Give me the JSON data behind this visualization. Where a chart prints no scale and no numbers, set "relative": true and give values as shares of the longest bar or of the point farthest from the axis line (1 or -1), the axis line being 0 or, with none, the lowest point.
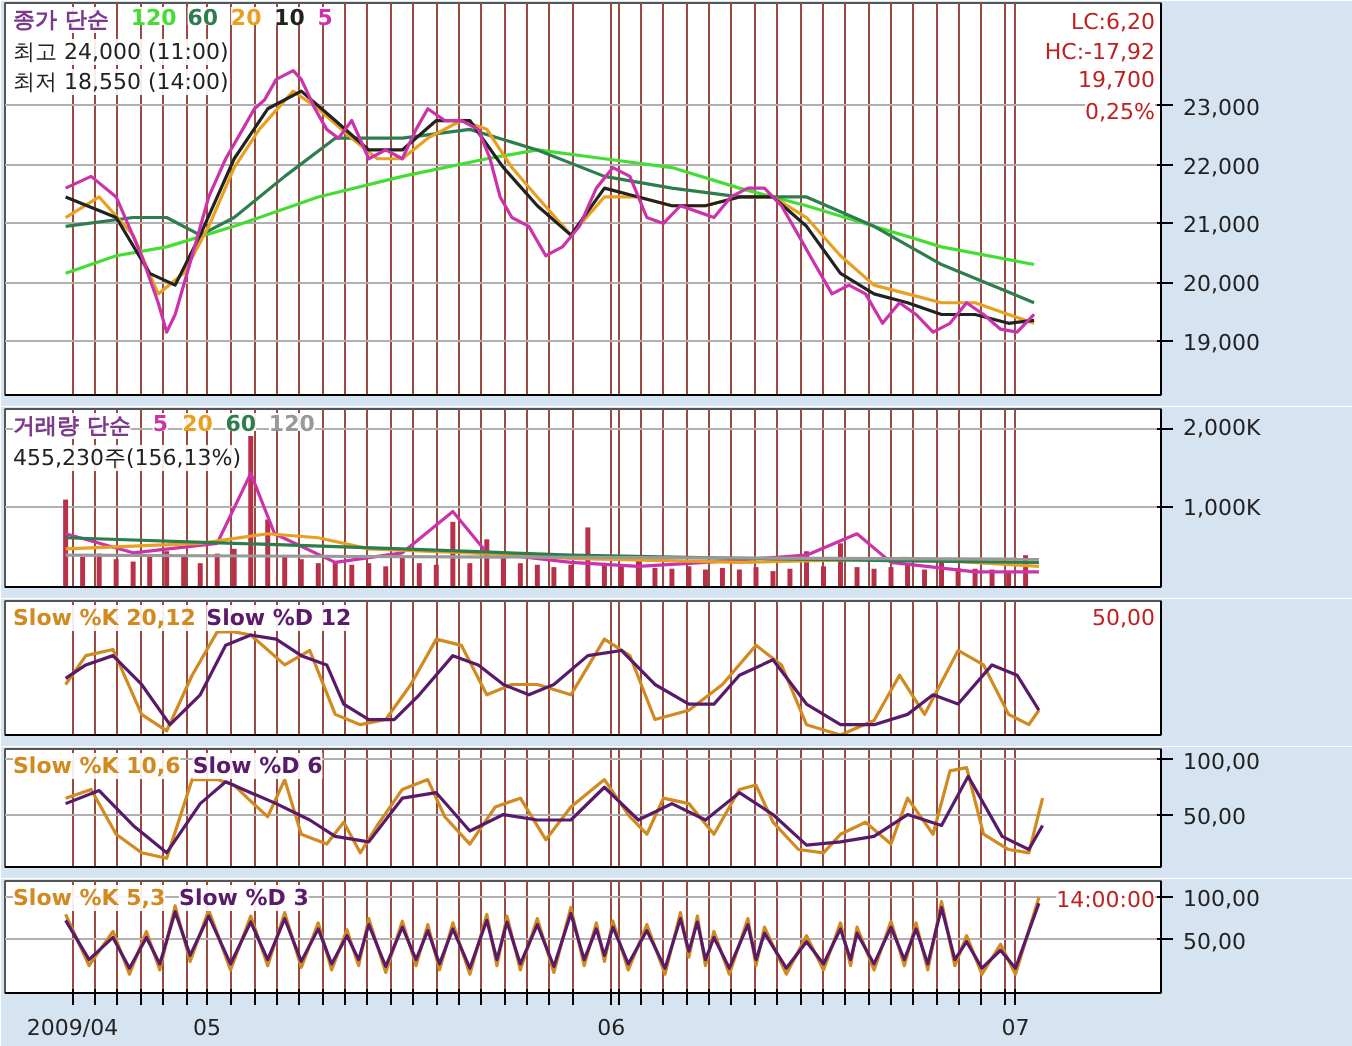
{
  "chart_data": [
    {
      "type": "line",
      "legend_title": "종가 단순",
      "legend": "top left",
      "grid": true,
      "tick_labels": "y",
      "xlim": [
        4.5,
        7.36
      ],
      "ylim": [
        18080,
        24750
      ],
      "xticks": [
        {
          "value": 4.667,
          "label": null
        },
        {
          "value": 4.723,
          "label": null
        },
        {
          "value": 4.779,
          "label": null
        },
        {
          "value": 4.836,
          "label": null
        },
        {
          "value": 4.892,
          "label": null
        },
        {
          "value": 4.948,
          "label": null
        },
        {
          "value": 5,
          "label": null
        },
        {
          "value": 5.061,
          "label": null
        },
        {
          "value": 5.117,
          "label": null
        },
        {
          "value": 5.173,
          "label": null
        },
        {
          "value": 5.229,
          "label": null
        },
        {
          "value": 5.286,
          "label": null
        },
        {
          "value": 5.342,
          "label": null
        },
        {
          "value": 5.398,
          "label": null
        },
        {
          "value": 5.454,
          "label": null
        },
        {
          "value": 5.511,
          "label": null
        },
        {
          "value": 5.567,
          "label": null
        },
        {
          "value": 5.623,
          "label": null
        },
        {
          "value": 5.679,
          "label": null
        },
        {
          "value": 5.736,
          "label": null
        },
        {
          "value": 5.792,
          "label": null
        },
        {
          "value": 5.848,
          "label": null
        },
        {
          "value": 5.904,
          "label": null
        },
        {
          "value": 6,
          "label": null
        },
        {
          "value": 6.017,
          "label": null
        },
        {
          "value": 6.073,
          "label": null
        },
        {
          "value": 6.129,
          "label": null
        },
        {
          "value": 6.186,
          "label": null
        },
        {
          "value": 6.242,
          "label": null
        },
        {
          "value": 6.298,
          "label": null
        },
        {
          "value": 6.354,
          "label": null
        },
        {
          "value": 6.411,
          "label": null
        },
        {
          "value": 6.467,
          "label": null
        },
        {
          "value": 6.523,
          "label": null
        },
        {
          "value": 6.579,
          "label": null
        },
        {
          "value": 6.636,
          "label": null
        },
        {
          "value": 6.692,
          "label": null
        },
        {
          "value": 6.748,
          "label": null
        },
        {
          "value": 6.804,
          "label": null
        },
        {
          "value": 6.861,
          "label": null
        },
        {
          "value": 6.917,
          "label": null
        },
        {
          "value": 6.973,
          "label": null
        },
        {
          "value": 7,
          "label": null
        }
      ],
      "yticks": [
        {
          "value": 19000,
          "label": "19,000"
        },
        {
          "value": 20000,
          "label": "20,000"
        },
        {
          "value": 21000,
          "label": "21,000"
        },
        {
          "value": 22000,
          "label": "22,000"
        },
        {
          "value": 23000,
          "label": "23,000"
        }
      ],
      "series": [
        {
          "name": "120",
          "color": "#44dd33",
          "x": [
            4.65,
            4.775,
            4.9,
            5.067,
            5.275,
            5.483,
            5.692,
            5.817,
            5.983,
            6.15,
            6.317,
            6.483,
            6.65,
            6.817,
            7.046
          ],
          "values": [
            20150,
            20450,
            20600,
            20950,
            21450,
            21800,
            22100,
            22250,
            22100,
            21950,
            21600,
            21300,
            20950,
            20600,
            20300
          ]
        },
        {
          "name": "60",
          "color": "#2e7d4f",
          "x": [
            4.65,
            4.817,
            4.9,
            4.983,
            5.067,
            5.192,
            5.317,
            5.483,
            5.65,
            5.817,
            5.983,
            6.15,
            6.317,
            6.483,
            6.65,
            6.817,
            7.046
          ],
          "values": [
            20950,
            21100,
            21100,
            20800,
            21100,
            21800,
            22450,
            22450,
            22600,
            22250,
            21800,
            21600,
            21450,
            21450,
            20950,
            20300,
            19650
          ]
        },
        {
          "name": "20",
          "color": "#e8a020",
          "x": [
            4.65,
            4.733,
            4.817,
            4.879,
            4.942,
            5.004,
            5.067,
            5.129,
            5.213,
            5.275,
            5.358,
            5.421,
            5.483,
            5.546,
            5.629,
            5.692,
            5.754,
            5.817,
            5.9,
            5.983,
            6.067,
            6.15,
            6.233,
            6.317,
            6.4,
            6.483,
            6.567,
            6.65,
            6.733,
            6.817,
            6.9,
            6.983,
            7.046
          ],
          "values": [
            21100,
            21450,
            20800,
            19800,
            20150,
            20950,
            21950,
            22600,
            23250,
            22950,
            22450,
            22100,
            22100,
            22450,
            22750,
            22600,
            21950,
            21450,
            20800,
            21450,
            21450,
            21300,
            21300,
            21450,
            21450,
            21100,
            20450,
            19950,
            19800,
            19650,
            19650,
            19450,
            19300
          ]
        },
        {
          "name": "10",
          "color": "#222222",
          "x": [
            4.65,
            4.775,
            4.858,
            4.921,
            4.983,
            5.067,
            5.15,
            5.233,
            5.317,
            5.4,
            5.483,
            5.567,
            5.65,
            5.733,
            5.817,
            5.9,
            5.983,
            6.067,
            6.15,
            6.233,
            6.317,
            6.4,
            6.483,
            6.567,
            6.65,
            6.733,
            6.817,
            6.9,
            6.983,
            7.046
          ],
          "values": [
            21450,
            21100,
            20150,
            19950,
            20800,
            22100,
            22950,
            23250,
            22750,
            22250,
            22250,
            22750,
            22750,
            21950,
            21300,
            20800,
            21600,
            21450,
            21300,
            21300,
            21450,
            21450,
            20950,
            20150,
            19800,
            19650,
            19450,
            19450,
            19300,
            19350
          ]
        },
        {
          "name": "5",
          "color": "#cc33aa",
          "x": [
            4.65,
            4.713,
            4.775,
            4.838,
            4.879,
            4.9,
            4.921,
            4.963,
            5.004,
            5.046,
            5.088,
            5.117,
            5.142,
            5.171,
            5.213,
            5.233,
            5.267,
            5.296,
            5.325,
            5.358,
            5.4,
            5.442,
            5.483,
            5.517,
            5.546,
            5.588,
            5.629,
            5.671,
            5.7,
            5.725,
            5.754,
            5.796,
            5.838,
            5.879,
            5.921,
            5.963,
            6.004,
            6.046,
            6.088,
            6.129,
            6.171,
            6.213,
            6.254,
            6.296,
            6.338,
            6.379,
            6.421,
            6.463,
            6.504,
            6.546,
            6.588,
            6.629,
            6.671,
            6.713,
            6.754,
            6.796,
            6.838,
            6.879,
            6.921,
            6.963,
            7.004,
            7.046
          ],
          "values": [
            21600,
            21800,
            21450,
            20450,
            19650,
            19150,
            19450,
            20450,
            21450,
            22100,
            22600,
            22950,
            23100,
            23450,
            23600,
            23450,
            22950,
            22600,
            22450,
            22750,
            22100,
            22250,
            22100,
            22600,
            22950,
            22750,
            22750,
            22600,
            22100,
            21450,
            21100,
            20950,
            20450,
            20600,
            20950,
            21600,
            21950,
            21800,
            21100,
            21000,
            21300,
            21200,
            21100,
            21450,
            21600,
            21600,
            21300,
            20800,
            20300,
            19800,
            19950,
            19800,
            19300,
            19650,
            19450,
            19150,
            19300,
            19650,
            19450,
            19200,
            19150,
            19450
          ]
        }
      ],
      "annotations": [
        "최고 24,000 (11:00)",
        "최저 18,550 (14:00)",
        "LC:6,20",
        "HC:-17,92",
        "19,700",
        "0,25%"
      ]
    },
    {
      "type": "bar",
      "legend_title": "거래량 단순",
      "legend": "top left",
      "grid": true,
      "tick_labels": "y",
      "xlim": [
        4.5,
        7.36
      ],
      "ylim": [
        0,
        2240
      ],
      "xticks": [
        {
          "value": 4.667,
          "label": null
        },
        {
          "value": 4.723,
          "label": null
        },
        {
          "value": 4.779,
          "label": null
        },
        {
          "value": 4.836,
          "label": null
        },
        {
          "value": 4.892,
          "label": null
        },
        {
          "value": 4.948,
          "label": null
        },
        {
          "value": 5,
          "label": null
        },
        {
          "value": 5.061,
          "label": null
        },
        {
          "value": 5.117,
          "label": null
        },
        {
          "value": 5.173,
          "label": null
        },
        {
          "value": 5.229,
          "label": null
        },
        {
          "value": 5.286,
          "label": null
        },
        {
          "value": 5.342,
          "label": null
        },
        {
          "value": 5.398,
          "label": null
        },
        {
          "value": 5.454,
          "label": null
        },
        {
          "value": 5.511,
          "label": null
        },
        {
          "value": 5.567,
          "label": null
        },
        {
          "value": 5.623,
          "label": null
        },
        {
          "value": 5.679,
          "label": null
        },
        {
          "value": 5.736,
          "label": null
        },
        {
          "value": 5.792,
          "label": null
        },
        {
          "value": 5.848,
          "label": null
        },
        {
          "value": 5.904,
          "label": null
        },
        {
          "value": 6,
          "label": null
        },
        {
          "value": 6.017,
          "label": null
        },
        {
          "value": 6.073,
          "label": null
        },
        {
          "value": 6.129,
          "label": null
        },
        {
          "value": 6.186,
          "label": null
        },
        {
          "value": 6.242,
          "label": null
        },
        {
          "value": 6.298,
          "label": null
        },
        {
          "value": 6.354,
          "label": null
        },
        {
          "value": 6.411,
          "label": null
        },
        {
          "value": 6.467,
          "label": null
        },
        {
          "value": 6.523,
          "label": null
        },
        {
          "value": 6.579,
          "label": null
        },
        {
          "value": 6.636,
          "label": null
        },
        {
          "value": 6.692,
          "label": null
        },
        {
          "value": 6.748,
          "label": null
        },
        {
          "value": 6.804,
          "label": null
        },
        {
          "value": 6.861,
          "label": null
        },
        {
          "value": 6.917,
          "label": null
        },
        {
          "value": 6.973,
          "label": null
        },
        {
          "value": 7,
          "label": null
        }
      ],
      "yticks": [
        {
          "value": 1000,
          "label": "1,000K"
        },
        {
          "value": 2000,
          "label": "2,000K"
        }
      ],
      "series": [
        {
          "type": "bar",
          "color": "#b8304a",
          "x": [
            4.65,
            4.692,
            4.733,
            4.775,
            4.817,
            4.858,
            4.9,
            4.942,
            4.983,
            5.025,
            5.067,
            5.108,
            5.15,
            5.192,
            5.233,
            5.275,
            5.317,
            5.358,
            5.4,
            5.442,
            5.483,
            5.525,
            5.567,
            5.608,
            5.65,
            5.692,
            5.733,
            5.775,
            5.817,
            5.858,
            5.9,
            5.942,
            5.983,
            6.025,
            6.067,
            6.108,
            6.15,
            6.192,
            6.233,
            6.275,
            6.317,
            6.358,
            6.4,
            6.442,
            6.483,
            6.525,
            6.567,
            6.608,
            6.65,
            6.692,
            6.733,
            6.775,
            6.817,
            6.858,
            6.9,
            6.942,
            6.983,
            7.025
          ],
          "values": [
            1100,
            380,
            420,
            350,
            320,
            400,
            450,
            380,
            300,
            420,
            480,
            1900,
            850,
            400,
            350,
            300,
            320,
            280,
            300,
            260,
            380,
            300,
            280,
            820,
            300,
            600,
            420,
            300,
            280,
            250,
            280,
            750,
            300,
            260,
            350,
            240,
            230,
            260,
            220,
            240,
            220,
            250,
            200,
            230,
            450,
            260,
            550,
            250,
            230,
            250,
            280,
            220,
            350,
            240,
            230,
            220,
            200,
            400
          ]
        },
        {
          "type": "line",
          "name": "5",
          "color": "#cc33aa",
          "x": [
            4.65,
            4.817,
            5.025,
            5.108,
            5.167,
            5.317,
            5.483,
            5.608,
            5.692,
            5.9,
            6.067,
            6.233,
            6.483,
            6.608,
            6.692,
            6.9,
            7.058
          ],
          "values": [
            670,
            430,
            550,
            1430,
            670,
            310,
            430,
            950,
            430,
            310,
            260,
            310,
            400,
            670,
            310,
            190,
            190
          ]
        },
        {
          "type": "line",
          "name": "20",
          "color": "#e8a020",
          "x": [
            4.65,
            4.983,
            5.15,
            5.275,
            5.4,
            5.65,
            5.9,
            6.317,
            6.733,
            7.058
          ],
          "values": [
            480,
            550,
            670,
            620,
            480,
            430,
            360,
            310,
            360,
            260
          ]
        },
        {
          "type": "line",
          "name": "60",
          "color": "#2e7d4f",
          "x": [
            4.65,
            5.067,
            5.483,
            5.9,
            6.317,
            6.733,
            7.058
          ],
          "values": [
            620,
            550,
            480,
            400,
            360,
            330,
            310
          ]
        },
        {
          "type": "line",
          "name": "120",
          "color": "#999999",
          "x": [
            4.65,
            7.058
          ],
          "values": [
            400,
            350
          ]
        }
      ],
      "annotations": [
        "455,230주(156,13%)"
      ]
    },
    {
      "type": "line",
      "relative": true,
      "legend": "top left",
      "grid": true,
      "tick_labels": false,
      "xlim": [
        4.5,
        7.36
      ],
      "xticks": [
        {
          "value": 4.667,
          "label": null
        },
        {
          "value": 4.723,
          "label": null
        },
        {
          "value": 4.779,
          "label": null
        },
        {
          "value": 4.836,
          "label": null
        },
        {
          "value": 4.892,
          "label": null
        },
        {
          "value": 4.948,
          "label": null
        },
        {
          "value": 5,
          "label": null
        },
        {
          "value": 5.061,
          "label": null
        },
        {
          "value": 5.117,
          "label": null
        },
        {
          "value": 5.173,
          "label": null
        },
        {
          "value": 5.229,
          "label": null
        },
        {
          "value": 5.286,
          "label": null
        },
        {
          "value": 5.342,
          "label": null
        },
        {
          "value": 5.398,
          "label": null
        },
        {
          "value": 5.454,
          "label": null
        },
        {
          "value": 5.511,
          "label": null
        },
        {
          "value": 5.567,
          "label": null
        },
        {
          "value": 5.623,
          "label": null
        },
        {
          "value": 5.679,
          "label": null
        },
        {
          "value": 5.736,
          "label": null
        },
        {
          "value": 5.792,
          "label": null
        },
        {
          "value": 5.848,
          "label": null
        },
        {
          "value": 5.904,
          "label": null
        },
        {
          "value": 6,
          "label": null
        },
        {
          "value": 6.017,
          "label": null
        },
        {
          "value": 6.073,
          "label": null
        },
        {
          "value": 6.129,
          "label": null
        },
        {
          "value": 6.186,
          "label": null
        },
        {
          "value": 6.242,
          "label": null
        },
        {
          "value": 6.298,
          "label": null
        },
        {
          "value": 6.354,
          "label": null
        },
        {
          "value": 6.411,
          "label": null
        },
        {
          "value": 6.467,
          "label": null
        },
        {
          "value": 6.523,
          "label": null
        },
        {
          "value": 6.579,
          "label": null
        },
        {
          "value": 6.636,
          "label": null
        },
        {
          "value": 6.692,
          "label": null
        },
        {
          "value": 6.748,
          "label": null
        },
        {
          "value": 6.804,
          "label": null
        },
        {
          "value": 6.861,
          "label": null
        },
        {
          "value": 6.917,
          "label": null
        },
        {
          "value": 6.973,
          "label": null
        },
        {
          "value": 7,
          "label": null
        }
      ],
      "series": [
        {
          "name": "Slow %K 20,12",
          "color": "#d08a20",
          "x": [
            4.65,
            4.7,
            4.767,
            4.838,
            4.9,
            4.963,
            5.025,
            5.067,
            5.108,
            5.192,
            5.254,
            5.317,
            5.379,
            5.442,
            5.504,
            5.567,
            5.629,
            5.692,
            5.754,
            5.817,
            5.9,
            5.983,
            6.046,
            6.108,
            6.192,
            6.275,
            6.358,
            6.421,
            6.483,
            6.567,
            6.65,
            6.713,
            6.775,
            6.858,
            6.921,
            6.983,
            7.033,
            7.058
          ],
          "values": [
            0.49,
            0.77,
            0.83,
            0.2,
            0.04,
            0.58,
            1,
            1,
            0.97,
            0.68,
            0.82,
            0.2,
            0.1,
            0.15,
            0.49,
            0.93,
            0.87,
            0.39,
            0.49,
            0.49,
            0.39,
            0.93,
            0.77,
            0.15,
            0.24,
            0.49,
            0.87,
            0.68,
            0.1,
            0,
            0.14,
            0.58,
            0.2,
            0.82,
            0.68,
            0.2,
            0.1,
            0.24
          ]
        },
        {
          "name": "Slow %D 12",
          "color": "#5a1a6a",
          "x": [
            4.65,
            4.7,
            4.767,
            4.838,
            4.908,
            4.983,
            5.046,
            5.108,
            5.171,
            5.233,
            5.296,
            5.338,
            5.4,
            5.463,
            5.525,
            5.608,
            5.671,
            5.733,
            5.796,
            5.858,
            5.942,
            6.025,
            6.108,
            6.192,
            6.254,
            6.317,
            6.4,
            6.483,
            6.567,
            6.65,
            6.733,
            6.796,
            6.858,
            6.942,
            7.004,
            7.058
          ],
          "values": [
            0.55,
            0.68,
            0.77,
            0.49,
            0.1,
            0.39,
            0.87,
            0.97,
            0.93,
            0.77,
            0.68,
            0.3,
            0.15,
            0.15,
            0.39,
            0.77,
            0.68,
            0.49,
            0.39,
            0.49,
            0.77,
            0.82,
            0.49,
            0.3,
            0.3,
            0.58,
            0.73,
            0.3,
            0.1,
            0.1,
            0.2,
            0.39,
            0.3,
            0.68,
            0.58,
            0.24
          ]
        }
      ],
      "annotations": [
        "50,00"
      ]
    },
    {
      "type": "line",
      "legend": "top left",
      "grid": true,
      "tick_labels": "y",
      "xlim": [
        4.5,
        7.36
      ],
      "ylim": [
        2,
        110
      ],
      "xticks": [
        {
          "value": 4.667,
          "label": null
        },
        {
          "value": 4.723,
          "label": null
        },
        {
          "value": 4.779,
          "label": null
        },
        {
          "value": 4.836,
          "label": null
        },
        {
          "value": 4.892,
          "label": null
        },
        {
          "value": 4.948,
          "label": null
        },
        {
          "value": 5,
          "label": null
        },
        {
          "value": 5.061,
          "label": null
        },
        {
          "value": 5.117,
          "label": null
        },
        {
          "value": 5.173,
          "label": null
        },
        {
          "value": 5.229,
          "label": null
        },
        {
          "value": 5.286,
          "label": null
        },
        {
          "value": 5.342,
          "label": null
        },
        {
          "value": 5.398,
          "label": null
        },
        {
          "value": 5.454,
          "label": null
        },
        {
          "value": 5.511,
          "label": null
        },
        {
          "value": 5.567,
          "label": null
        },
        {
          "value": 5.623,
          "label": null
        },
        {
          "value": 5.679,
          "label": null
        },
        {
          "value": 5.736,
          "label": null
        },
        {
          "value": 5.792,
          "label": null
        },
        {
          "value": 5.848,
          "label": null
        },
        {
          "value": 5.904,
          "label": null
        },
        {
          "value": 6,
          "label": null
        },
        {
          "value": 6.017,
          "label": null
        },
        {
          "value": 6.073,
          "label": null
        },
        {
          "value": 6.129,
          "label": null
        },
        {
          "value": 6.186,
          "label": null
        },
        {
          "value": 6.242,
          "label": null
        },
        {
          "value": 6.298,
          "label": null
        },
        {
          "value": 6.354,
          "label": null
        },
        {
          "value": 6.411,
          "label": null
        },
        {
          "value": 6.467,
          "label": null
        },
        {
          "value": 6.523,
          "label": null
        },
        {
          "value": 6.579,
          "label": null
        },
        {
          "value": 6.636,
          "label": null
        },
        {
          "value": 6.692,
          "label": null
        },
        {
          "value": 6.748,
          "label": null
        },
        {
          "value": 6.804,
          "label": null
        },
        {
          "value": 6.861,
          "label": null
        },
        {
          "value": 6.917,
          "label": null
        },
        {
          "value": 6.973,
          "label": null
        },
        {
          "value": 7,
          "label": null
        }
      ],
      "yticks": [
        {
          "value": 50,
          "label": "50,00"
        },
        {
          "value": 100,
          "label": "100,00"
        }
      ],
      "series": [
        {
          "name": "Slow %K 10,6",
          "color": "#d08a20",
          "x": [
            4.65,
            4.713,
            4.775,
            4.838,
            4.9,
            4.963,
            5.025,
            5.067,
            5.1,
            5.15,
            5.192,
            5.233,
            5.296,
            5.338,
            5.379,
            5.421,
            5.483,
            5.546,
            5.588,
            5.65,
            5.713,
            5.775,
            5.838,
            5.9,
            5.983,
            6.046,
            6.088,
            6.129,
            6.192,
            6.254,
            6.317,
            6.358,
            6.4,
            6.463,
            6.525,
            6.567,
            6.629,
            6.692,
            6.733,
            6.796,
            6.838,
            6.879,
            6.921,
            6.983,
            7.033,
            7.067
          ],
          "values": [
            65,
            73,
            32,
            15,
            10,
            82,
            82,
            77,
            65,
            48,
            82,
            32,
            23,
            43,
            15,
            40,
            73,
            82,
            48,
            23,
            57,
            65,
            27,
            57,
            82,
            48,
            32,
            65,
            60,
            32,
            73,
            77,
            43,
            18,
            15,
            32,
            43,
            23,
            65,
            32,
            90,
            93,
            32,
            18,
            15,
            65
          ]
        },
        {
          "name": "Slow %D 6",
          "color": "#5a1a6a",
          "x": [
            4.65,
            4.733,
            4.817,
            4.9,
            4.983,
            5.046,
            5.108,
            5.171,
            5.254,
            5.317,
            5.4,
            5.483,
            5.567,
            5.65,
            5.733,
            5.817,
            5.9,
            5.983,
            6.067,
            6.15,
            6.233,
            6.317,
            6.4,
            6.483,
            6.567,
            6.65,
            6.733,
            6.817,
            6.883,
            6.967,
            7.033,
            7.067
          ],
          "values": [
            60,
            72,
            40,
            15,
            60,
            80,
            70,
            60,
            45,
            30,
            25,
            65,
            70,
            35,
            50,
            45,
            45,
            75,
            45,
            60,
            45,
            70,
            50,
            22,
            25,
            30,
            50,
            40,
            85,
            30,
            18,
            40
          ]
        }
      ]
    },
    {
      "type": "line",
      "legend": "top left",
      "grid": true,
      "xlim": [
        4.5,
        7.36
      ],
      "ylim": [
        -12,
        119
      ],
      "xticks": [
        {
          "value": 4.667,
          "label": "2009/04"
        },
        {
          "value": 4.723,
          "label": null
        },
        {
          "value": 4.779,
          "label": null
        },
        {
          "value": 4.836,
          "label": null
        },
        {
          "value": 4.892,
          "label": null
        },
        {
          "value": 4.948,
          "label": null
        },
        {
          "value": 5,
          "label": "05"
        },
        {
          "value": 5.061,
          "label": null
        },
        {
          "value": 5.117,
          "label": null
        },
        {
          "value": 5.173,
          "label": null
        },
        {
          "value": 5.229,
          "label": null
        },
        {
          "value": 5.286,
          "label": null
        },
        {
          "value": 5.342,
          "label": null
        },
        {
          "value": 5.398,
          "label": null
        },
        {
          "value": 5.454,
          "label": null
        },
        {
          "value": 5.511,
          "label": null
        },
        {
          "value": 5.567,
          "label": null
        },
        {
          "value": 5.623,
          "label": null
        },
        {
          "value": 5.679,
          "label": null
        },
        {
          "value": 5.736,
          "label": null
        },
        {
          "value": 5.792,
          "label": null
        },
        {
          "value": 5.848,
          "label": null
        },
        {
          "value": 5.904,
          "label": null
        },
        {
          "value": 6,
          "label": "06"
        },
        {
          "value": 6.017,
          "label": null
        },
        {
          "value": 6.073,
          "label": null
        },
        {
          "value": 6.129,
          "label": null
        },
        {
          "value": 6.186,
          "label": null
        },
        {
          "value": 6.242,
          "label": null
        },
        {
          "value": 6.298,
          "label": null
        },
        {
          "value": 6.354,
          "label": null
        },
        {
          "value": 6.411,
          "label": null
        },
        {
          "value": 6.467,
          "label": null
        },
        {
          "value": 6.523,
          "label": null
        },
        {
          "value": 6.579,
          "label": null
        },
        {
          "value": 6.636,
          "label": null
        },
        {
          "value": 6.692,
          "label": null
        },
        {
          "value": 6.748,
          "label": null
        },
        {
          "value": 6.804,
          "label": null
        },
        {
          "value": 6.861,
          "label": null
        },
        {
          "value": 6.917,
          "label": null
        },
        {
          "value": 6.973,
          "label": null
        },
        {
          "value": 7,
          "label": "07"
        }
      ],
      "yticks": [
        {
          "value": 50,
          "label": "50,00"
        },
        {
          "value": 100,
          "label": "100,00"
        }
      ],
      "series": [
        {
          "name": "Slow %K 5,3",
          "color": "#d08a20",
          "x": [
            4.65,
            4.708,
            4.767,
            4.808,
            4.85,
            4.883,
            4.921,
            4.958,
            5.004,
            5.058,
            5.108,
            5.15,
            5.192,
            5.233,
            5.275,
            5.308,
            5.346,
            5.375,
            5.4,
            5.442,
            5.483,
            5.517,
            5.546,
            5.575,
            5.608,
            5.65,
            5.692,
            5.717,
            5.742,
            5.775,
            5.817,
            5.858,
            5.9,
            5.933,
            5.963,
            5.983,
            6.004,
            6.042,
            6.088,
            6.133,
            6.171,
            6.192,
            6.213,
            6.233,
            6.254,
            6.292,
            6.338,
            6.358,
            6.379,
            6.433,
            6.483,
            6.525,
            6.567,
            6.592,
            6.608,
            6.65,
            6.692,
            6.725,
            6.754,
            6.783,
            6.817,
            6.85,
            6.879,
            6.917,
            6.963,
            7.0,
            7.058
          ],
          "values": [
            80,
            20,
            60,
            10,
            60,
            15,
            90,
            25,
            85,
            15,
            78,
            20,
            82,
            18,
            70,
            15,
            62,
            20,
            75,
            12,
            72,
            20,
            68,
            15,
            70,
            10,
            80,
            20,
            78,
            15,
            75,
            12,
            88,
            20,
            70,
            25,
            72,
            15,
            68,
            10,
            82,
            30,
            78,
            20,
            60,
            10,
            75,
            20,
            65,
            10,
            55,
            15,
            70,
            20,
            65,
            15,
            72,
            20,
            70,
            15,
            95,
            20,
            55,
            10,
            45,
            10,
            100
          ]
        },
        {
          "name": "Slow %D 3",
          "color": "#5a1a6a",
          "x": [
            4.65,
            4.708,
            4.767,
            4.808,
            4.85,
            4.883,
            4.921,
            4.958,
            5.004,
            5.058,
            5.108,
            5.15,
            5.192,
            5.233,
            5.275,
            5.308,
            5.346,
            5.375,
            5.4,
            5.442,
            5.483,
            5.517,
            5.546,
            5.575,
            5.608,
            5.65,
            5.692,
            5.717,
            5.742,
            5.775,
            5.817,
            5.858,
            5.9,
            5.933,
            5.963,
            5.983,
            6.004,
            6.042,
            6.088,
            6.133,
            6.171,
            6.192,
            6.213,
            6.233,
            6.254,
            6.292,
            6.338,
            6.358,
            6.379,
            6.433,
            6.483,
            6.525,
            6.567,
            6.592,
            6.608,
            6.65,
            6.692,
            6.725,
            6.754,
            6.783,
            6.817,
            6.85,
            6.879,
            6.917,
            6.963,
            7.0,
            7.058
          ],
          "values": [
            73,
            27,
            53,
            17,
            53,
            22,
            83,
            32,
            78,
            22,
            71,
            27,
            75,
            25,
            63,
            22,
            55,
            27,
            68,
            19,
            65,
            27,
            61,
            22,
            63,
            17,
            73,
            27,
            71,
            22,
            68,
            19,
            81,
            27,
            63,
            32,
            65,
            22,
            61,
            17,
            75,
            37,
            71,
            27,
            53,
            17,
            68,
            27,
            58,
            17,
            48,
            22,
            63,
            27,
            58,
            22,
            65,
            27,
            63,
            22,
            88,
            27,
            48,
            17,
            38,
            17,
            93
          ]
        }
      ],
      "annotations": [
        "14:00:00"
      ]
    }
  ]
}
